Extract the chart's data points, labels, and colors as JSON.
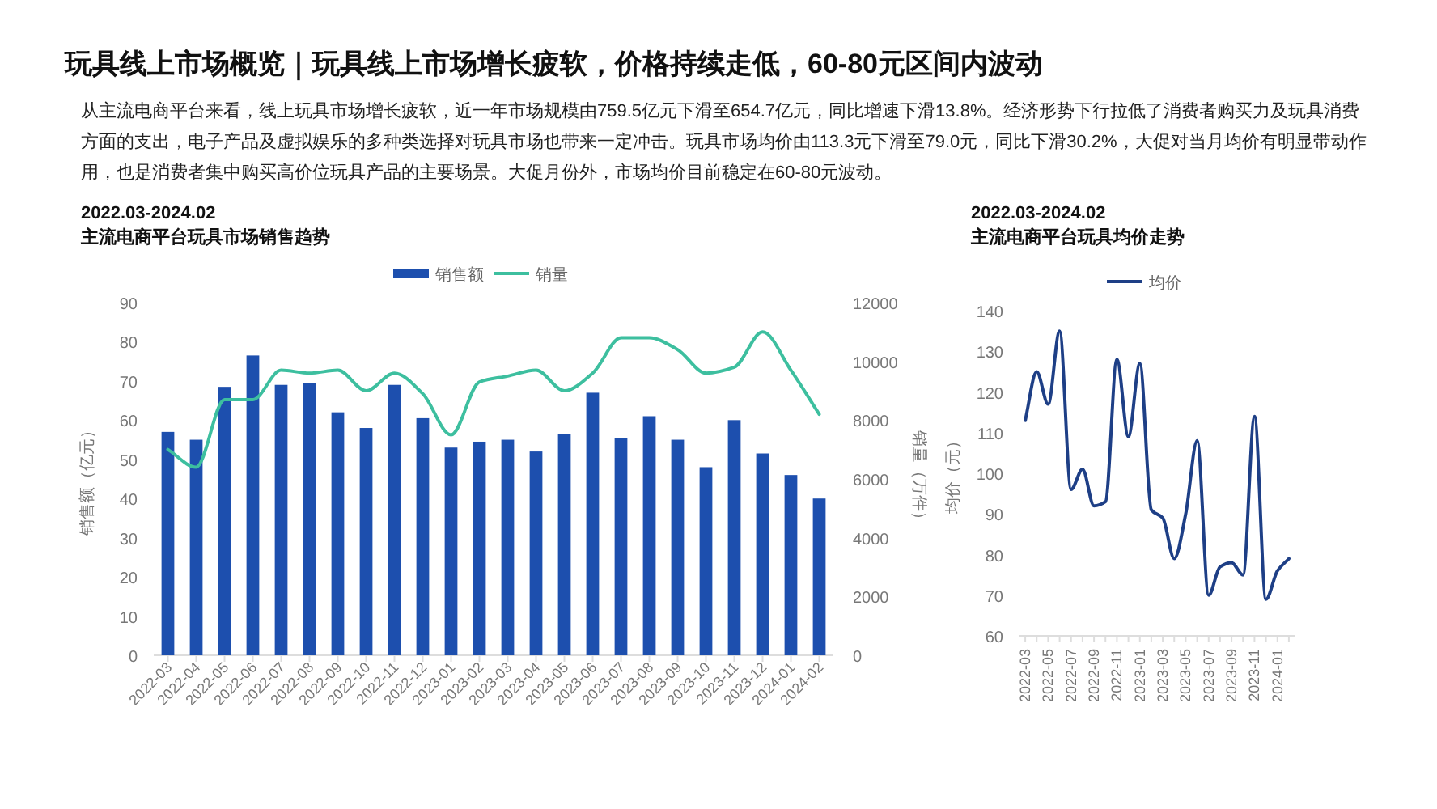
{
  "chart_data": [
    {
      "type": "other",
      "title": "玩具线上市场概览｜玩具线上市场增长疲软，价格持续走低，60-80元区间内波动",
      "annotations": [
        "从主流电商平台来看，线上玩具市场增长疲软，近一年市场规模由759.5亿元下滑至654.7亿元，同比增速下滑13.8%。经济形势下行拉低了消费者购买力及玩具消费方面的支出，电子产品及虚拟娱乐的多种类选择对玩具市场也带来一定冲击。玩具市场均价由113.3元下滑至79.0元，同比下滑30.2%，大促对当月均价有明显带动作用，也是消费者集中购买高价位玩具产品的主要场景。大促月份外，市场均价目前稳定在60-80元波动。"
      ]
    },
    {
      "type": "bar",
      "subtitle": "2022.03-2024.02",
      "title": "主流电商平台玩具市场销售趋势",
      "categories": [
        "2022-03",
        "2022-04",
        "2022-05",
        "2022-06",
        "2022-07",
        "2022-08",
        "2022-09",
        "2022-10",
        "2022-11",
        "2022-12",
        "2023-01",
        "2023-02",
        "2023-03",
        "2023-04",
        "2023-05",
        "2023-06",
        "2023-07",
        "2023-08",
        "2023-09",
        "2023-10",
        "2023-11",
        "2023-12",
        "2024-01",
        "2024-02"
      ],
      "ylabel": "销售额（亿元）",
      "y2label": "销量（万件）",
      "ylim": [
        0,
        90
      ],
      "yticks": [
        0,
        10,
        20,
        30,
        40,
        50,
        60,
        70,
        80,
        90
      ],
      "y2lim": [
        0,
        12000
      ],
      "y2ticks": [
        0,
        2000,
        4000,
        6000,
        8000,
        10000,
        12000
      ],
      "legend": "top",
      "series": [
        {
          "name": "销售额",
          "type": "bar",
          "color": "#1d4fae",
          "values": [
            57,
            55,
            68.5,
            76.5,
            69,
            69.5,
            62,
            58,
            69,
            60.5,
            53,
            54.5,
            55,
            52,
            56.5,
            67,
            55.5,
            61,
            55,
            48,
            60,
            51.5,
            46,
            40
          ]
        },
        {
          "name": "销量",
          "type": "line",
          "axis": "y2",
          "color": "#3dbf9f",
          "values": [
            7000,
            6400,
            8700,
            8700,
            9700,
            9600,
            9700,
            9000,
            9600,
            8900,
            7500,
            9300,
            9500,
            9700,
            9000,
            9600,
            10800,
            10800,
            10400,
            9600,
            9800,
            11000,
            9700,
            8200
          ]
        }
      ]
    },
    {
      "type": "line",
      "subtitle": "2022.03-2024.02",
      "title": "主流电商平台玩具均价走势",
      "categories": [
        "2022-03",
        null,
        "2022-05",
        null,
        "2022-07",
        null,
        "2022-09",
        null,
        "2022-11",
        null,
        "2023-01",
        null,
        "2023-03",
        null,
        "2023-05",
        null,
        "2023-07",
        null,
        "2023-09",
        null,
        "2023-11",
        null,
        "2024-01",
        null
      ],
      "ylabel": "均价（元）",
      "ylim": [
        60,
        140
      ],
      "yticks": [
        60,
        70,
        80,
        90,
        100,
        110,
        120,
        130,
        140
      ],
      "legend": "top",
      "series": [
        {
          "name": "均价",
          "color": "#1e3f86",
          "values": [
            113,
            125,
            117,
            135,
            96,
            101,
            92,
            93,
            128,
            109,
            127,
            91,
            89,
            79,
            90,
            108,
            70,
            77,
            78,
            75,
            114,
            69,
            76,
            79
          ]
        }
      ]
    }
  ]
}
